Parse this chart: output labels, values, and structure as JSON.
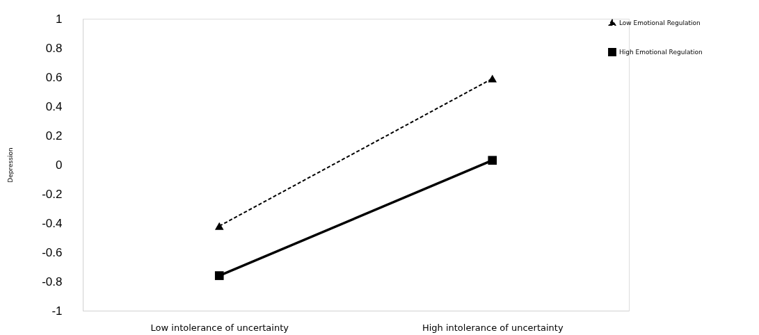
{
  "chart_data": {
    "type": "line",
    "ylabel": "Depression",
    "categories": [
      "Low intolerance of uncertainty",
      "High intolerance of uncertainty"
    ],
    "series": [
      {
        "name": "Low Emotional Regulation",
        "color": "#000000",
        "values": [
          -0.42,
          0.59
        ],
        "marker": "triangle",
        "line_style": "dashed"
      },
      {
        "name": "High Emotional Regulation",
        "color": "#000000",
        "values": [
          -0.76,
          0.03
        ],
        "marker": "square",
        "line_style": "solid"
      }
    ],
    "ylim": [
      -1,
      1
    ],
    "yticks": [
      -1,
      -0.8,
      -0.6,
      -0.4,
      -0.2,
      0,
      0.2,
      0.4,
      0.6,
      0.8,
      1
    ],
    "grid": false,
    "legend": "top right"
  }
}
